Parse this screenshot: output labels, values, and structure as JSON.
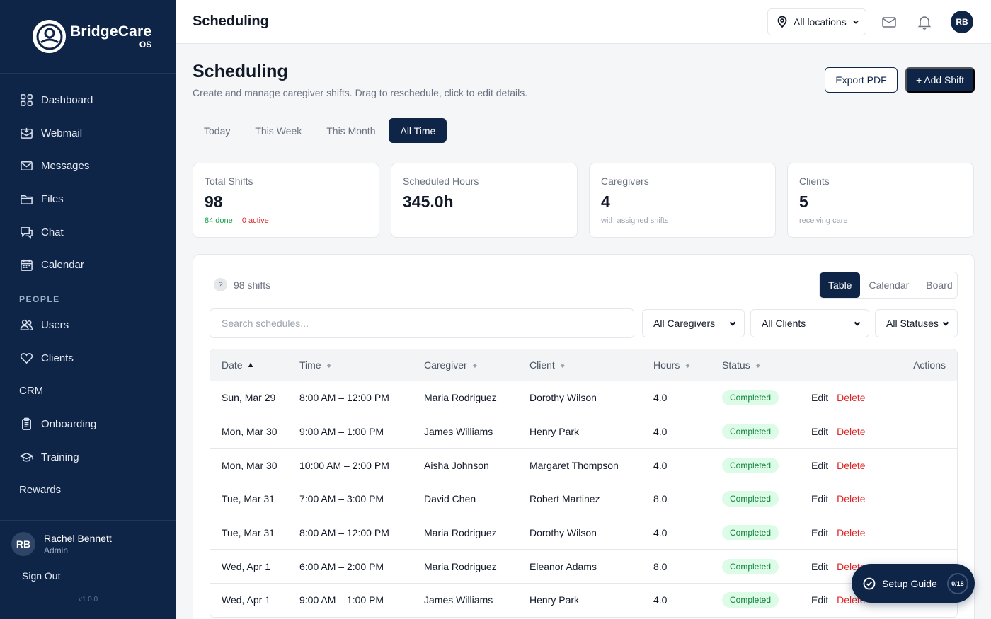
{
  "brand": {
    "name": "BridgeCare",
    "sub": "OS"
  },
  "sidebar": {
    "items": [
      {
        "label": "Dashboard",
        "icon": "dashboard-icon"
      },
      {
        "label": "Webmail",
        "icon": "webmail-icon"
      },
      {
        "label": "Messages",
        "icon": "mail-icon"
      },
      {
        "label": "Files",
        "icon": "folder-icon"
      },
      {
        "label": "Chat",
        "icon": "chat-icon"
      },
      {
        "label": "Calendar",
        "icon": "calendar-icon"
      }
    ],
    "section_people": "PEOPLE",
    "people_items": [
      {
        "label": "Users",
        "icon": "users-icon"
      },
      {
        "label": "Clients",
        "icon": "heart-icon"
      },
      {
        "label": "CRM",
        "icon": ""
      },
      {
        "label": "Onboarding",
        "icon": "clipboard-icon"
      },
      {
        "label": "Training",
        "icon": "graduation-cap-icon"
      },
      {
        "label": "Rewards",
        "icon": ""
      }
    ],
    "user": {
      "initials": "RB",
      "name": "Rachel Bennett",
      "role": "Admin"
    },
    "sign_out": "Sign Out",
    "version": "v1.0.0"
  },
  "topbar": {
    "title": "Scheduling",
    "location": "All locations",
    "avatar": "RB"
  },
  "page": {
    "title": "Scheduling",
    "subtitle": "Create and manage caregiver shifts. Drag to reschedule, click to edit details.",
    "export_label": "Export PDF",
    "add_label": "+ Add Shift",
    "tabs": [
      "Today",
      "This Week",
      "This Month",
      "All Time"
    ],
    "active_tab": "All Time"
  },
  "stats": [
    {
      "label": "Total Shifts",
      "value": "98",
      "note_done": "84 done",
      "note_active": "0 active"
    },
    {
      "label": "Scheduled Hours",
      "value": "345.0h",
      "note": ""
    },
    {
      "label": "Caregivers",
      "value": "4",
      "note": "with assigned shifts"
    },
    {
      "label": "Clients",
      "value": "5",
      "note": "receiving care"
    }
  ],
  "panel": {
    "help": "?",
    "count": "98 shifts",
    "views": [
      "Table",
      "Calendar",
      "Board"
    ],
    "search_placeholder": "Search schedules...",
    "filters": [
      "All Caregivers",
      "All Clients",
      "All Statuses"
    ]
  },
  "table": {
    "headers": [
      "Date",
      "Time",
      "Caregiver",
      "Client",
      "Hours",
      "Status",
      "Actions"
    ],
    "edit_label": "Edit",
    "delete_label": "Delete",
    "rows": [
      {
        "date": "Sun, Mar 29",
        "time": "8:00 AM – 12:00 PM",
        "caregiver": "Maria Rodriguez",
        "client": "Dorothy Wilson",
        "hours": "4.0",
        "status": "Completed"
      },
      {
        "date": "Mon, Mar 30",
        "time": "9:00 AM – 1:00 PM",
        "caregiver": "James Williams",
        "client": "Henry Park",
        "hours": "4.0",
        "status": "Completed"
      },
      {
        "date": "Mon, Mar 30",
        "time": "10:00 AM – 2:00 PM",
        "caregiver": "Aisha Johnson",
        "client": "Margaret Thompson",
        "hours": "4.0",
        "status": "Completed"
      },
      {
        "date": "Tue, Mar 31",
        "time": "7:00 AM – 3:00 PM",
        "caregiver": "David Chen",
        "client": "Robert Martinez",
        "hours": "8.0",
        "status": "Completed"
      },
      {
        "date": "Tue, Mar 31",
        "time": "8:00 AM – 12:00 PM",
        "caregiver": "Maria Rodriguez",
        "client": "Dorothy Wilson",
        "hours": "4.0",
        "status": "Completed"
      },
      {
        "date": "Wed, Apr 1",
        "time": "6:00 AM – 2:00 PM",
        "caregiver": "Maria Rodriguez",
        "client": "Eleanor Adams",
        "hours": "8.0",
        "status": "Completed"
      },
      {
        "date": "Wed, Apr 1",
        "time": "9:00 AM – 1:00 PM",
        "caregiver": "James Williams",
        "client": "Henry Park",
        "hours": "4.0",
        "status": "Completed"
      }
    ]
  },
  "setup": {
    "label": "Setup Guide",
    "progress": "0/18"
  },
  "colors": {
    "navy": "#0f2548",
    "success_bg": "#dcfce7",
    "success_text": "#15803d",
    "danger": "#dc2626"
  }
}
